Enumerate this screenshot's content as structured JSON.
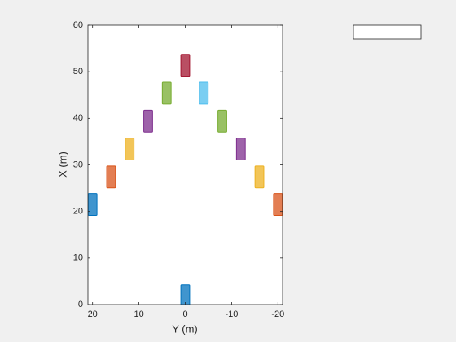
{
  "chart_data": {
    "type": "birdseye",
    "x_label": "X (m)",
    "y_label": "Y (m)",
    "xlim": [
      0,
      60
    ],
    "xticks": [
      0,
      10,
      20,
      30,
      40,
      50,
      60
    ],
    "ylim": [
      -21,
      21
    ],
    "yticks": [
      20,
      10,
      0,
      -10,
      -20
    ],
    "y_reversed": true,
    "vehicle_length": 4.7,
    "vehicle_width": 1.9,
    "vehicles": [
      {
        "x": 1.9,
        "y": 0,
        "color": "#0072BD"
      },
      {
        "x": 21.5,
        "y": 20,
        "color": "#0072BD"
      },
      {
        "x": 27.4,
        "y": 16,
        "color": "#D95319"
      },
      {
        "x": 33.4,
        "y": 12,
        "color": "#EDB120"
      },
      {
        "x": 39.4,
        "y": 8,
        "color": "#7E2F8E"
      },
      {
        "x": 45.4,
        "y": 4,
        "color": "#77AC30"
      },
      {
        "x": 51.4,
        "y": 0,
        "color": "#A2142F"
      },
      {
        "x": 45.4,
        "y": -4,
        "color": "#4DBEEE"
      },
      {
        "x": 39.4,
        "y": -8,
        "color": "#77AC30"
      },
      {
        "x": 33.4,
        "y": -12,
        "color": "#7E2F8E"
      },
      {
        "x": 27.4,
        "y": -16,
        "color": "#EDB120"
      },
      {
        "x": 21.5,
        "y": -20,
        "color": "#D95319"
      }
    ]
  }
}
